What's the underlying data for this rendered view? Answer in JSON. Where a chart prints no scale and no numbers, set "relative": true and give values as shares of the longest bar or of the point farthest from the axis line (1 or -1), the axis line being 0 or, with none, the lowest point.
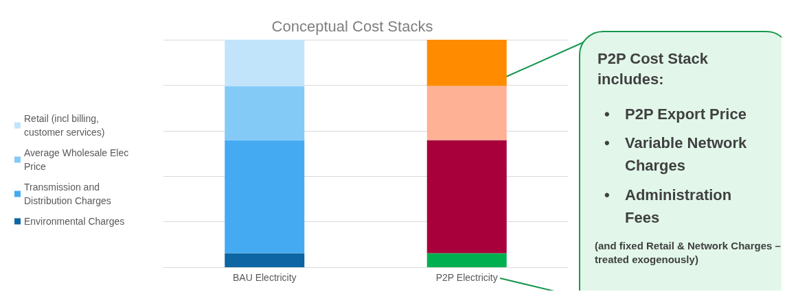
{
  "chart_data": {
    "type": "bar",
    "title": "Conceptual Cost Stacks",
    "relative": true,
    "stacked": true,
    "grid": "y",
    "legend": "left",
    "categories": [
      "BAU Electricity",
      "P2P Electricity"
    ],
    "series": [
      {
        "name": "Environmental Charges",
        "color": "#0d65a3",
        "colors": [
          "#0d65a3",
          "#00b050"
        ],
        "values": [
          0.062,
          0.062
        ]
      },
      {
        "name": "Transmission and Distribution Charges",
        "color": "#44abf2",
        "colors": [
          "#44abf2",
          "#a8003b"
        ],
        "values": [
          0.497,
          0.497
        ]
      },
      {
        "name": "Average Wholesale Elec Price",
        "color": "#84caf6",
        "colors": [
          "#84caf6",
          "#ffb196"
        ],
        "values": [
          0.238,
          0.238
        ]
      },
      {
        "name": "Retail (incl billing, customer services)",
        "color": "#c2e4fb",
        "colors": [
          "#c2e4fb",
          "#ff8c00"
        ],
        "values": [
          0.203,
          0.203
        ]
      }
    ],
    "annotations": [
      "P2P Cost Stack includes:",
      "• P2P Export Price",
      "• Variable Network Charges",
      "• Administration Fees",
      "(and fixed Retail & Network Charges – treated exogenously)"
    ]
  }
}
